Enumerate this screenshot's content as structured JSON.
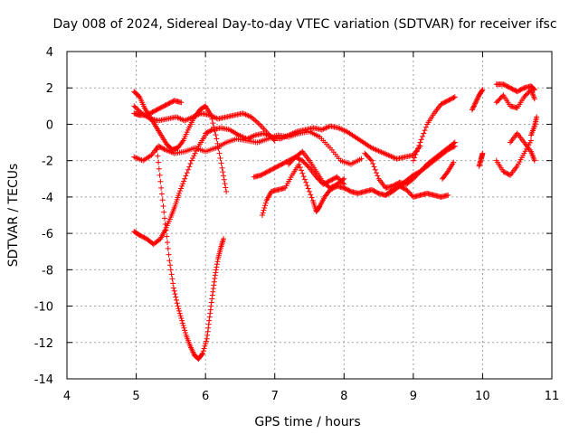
{
  "chart_data": {
    "type": "scatter",
    "title": "Day 008 of 2024, Sidereal Day-to-day VTEC variation (SDTVAR) for receiver ifsc",
    "xlabel": "GPS time / hours",
    "ylabel": "SDTVAR / TECUs",
    "xlim": [
      4,
      11
    ],
    "ylim": [
      -14,
      4
    ],
    "xticks": [
      4,
      5,
      6,
      7,
      8,
      9,
      10,
      11
    ],
    "yticks": [
      -14,
      -12,
      -10,
      -8,
      -6,
      -4,
      -2,
      0,
      2,
      4
    ],
    "grid": true,
    "marker": "plus",
    "color": "#ff0000",
    "series": [
      {
        "x": [
          4.97,
          5.05,
          5.12,
          5.2,
          5.28,
          5.36,
          5.44,
          5.52,
          5.6,
          5.68,
          5.76,
          5.84,
          5.92,
          6.0,
          6.08,
          6.16,
          6.24,
          6.3
        ],
        "y": [
          1.8,
          1.5,
          0.9,
          0.4,
          -0.1,
          -0.6,
          -1.1,
          -1.4,
          -1.3,
          -0.9,
          -0.2,
          0.4,
          0.8,
          1.0,
          0.5,
          -0.8,
          -2.4,
          -3.7
        ]
      },
      {
        "x": [
          4.97,
          5.05,
          5.15,
          5.25,
          5.35,
          5.45,
          5.55,
          5.65
        ],
        "y": [
          0.6,
          0.5,
          0.5,
          0.7,
          0.9,
          1.1,
          1.3,
          1.2
        ]
      },
      {
        "x": [
          4.97,
          5.08,
          5.2,
          5.32,
          5.45,
          5.58,
          5.7,
          5.82,
          5.94,
          6.06,
          6.18,
          6.3,
          6.42,
          6.54,
          6.66,
          6.78,
          6.9,
          7.0
        ],
        "y": [
          1.0,
          0.6,
          0.3,
          0.2,
          0.3,
          0.4,
          0.2,
          0.4,
          0.6,
          0.5,
          0.3,
          0.4,
          0.5,
          0.6,
          0.4,
          0.0,
          -0.5,
          -0.9
        ]
      },
      {
        "x": [
          4.97,
          5.1,
          5.22,
          5.32,
          5.42,
          5.55,
          5.7,
          5.85,
          6.0,
          6.15,
          6.3,
          6.45,
          6.6,
          6.75,
          6.9,
          7.05,
          7.2,
          7.35,
          7.5,
          7.65,
          7.8,
          7.95,
          8.1,
          8.25
        ],
        "y": [
          -1.8,
          -2.0,
          -1.7,
          -1.2,
          -1.4,
          -1.6,
          -1.5,
          -1.3,
          -1.5,
          -1.3,
          -1.0,
          -0.8,
          -0.9,
          -1.0,
          -0.8,
          -0.6,
          -0.7,
          -0.5,
          -0.4,
          -0.7,
          -1.3,
          -2.0,
          -2.2,
          -1.9
        ]
      },
      {
        "x": [
          4.97,
          5.05,
          5.15,
          5.25,
          5.35,
          5.42,
          5.5,
          5.56,
          5.62,
          5.7,
          5.8,
          5.9,
          6.0
        ],
        "y": [
          -5.9,
          -6.1,
          -6.3,
          -6.6,
          -6.3,
          -5.8,
          -5.1,
          -4.5,
          -3.8,
          -3.0,
          -2.0,
          -1.2,
          -0.6
        ]
      },
      {
        "x": [
          5.3,
          5.36,
          5.42,
          5.48,
          5.54,
          5.6,
          5.66,
          5.72,
          5.78,
          5.84,
          5.9,
          5.96,
          6.02,
          6.06,
          6.1,
          6.14,
          6.18,
          6.22,
          6.26
        ],
        "y": [
          -1.4,
          -3.5,
          -5.5,
          -7.5,
          -9.0,
          -10.0,
          -10.8,
          -11.6,
          -12.2,
          -12.7,
          -12.9,
          -12.6,
          -11.8,
          -10.6,
          -9.4,
          -8.3,
          -7.4,
          -6.8,
          -6.3
        ]
      },
      {
        "x": [
          6.0,
          6.1,
          6.22,
          6.35,
          6.48,
          6.6,
          6.72,
          6.84,
          6.96,
          7.08,
          7.2,
          7.32,
          7.44,
          7.56,
          7.68,
          7.8,
          7.92,
          8.04,
          8.16,
          8.28,
          8.4,
          8.52,
          8.64,
          8.76,
          8.88,
          9.0,
          9.1
        ],
        "y": [
          -0.5,
          -0.3,
          -0.2,
          -0.3,
          -0.6,
          -0.8,
          -0.6,
          -0.5,
          -0.7,
          -0.8,
          -0.6,
          -0.4,
          -0.3,
          -0.2,
          -0.3,
          -0.1,
          -0.2,
          -0.4,
          -0.7,
          -1.0,
          -1.3,
          -1.5,
          -1.7,
          -1.9,
          -1.8,
          -1.7,
          -1.2
        ]
      },
      {
        "x": [
          6.7,
          6.8,
          6.9,
          7.0,
          7.1,
          7.2,
          7.3,
          7.4,
          7.5,
          7.6,
          7.7,
          7.8,
          7.9,
          8.0
        ],
        "y": [
          -2.9,
          -2.8,
          -2.6,
          -2.4,
          -2.2,
          -2.0,
          -1.8,
          -2.0,
          -2.4,
          -2.9,
          -3.3,
          -3.1,
          -2.9,
          -3.3
        ]
      },
      {
        "x": [
          6.82,
          6.88,
          6.95,
          7.05,
          7.15,
          7.25,
          7.35,
          7.45,
          7.55,
          7.6,
          7.65,
          7.72,
          7.8,
          7.9,
          8.0,
          8.1,
          8.2,
          8.3,
          8.4,
          8.5,
          8.6,
          8.7,
          8.8,
          8.9,
          9.0,
          9.1,
          9.2,
          9.3,
          9.4,
          9.5
        ],
        "y": [
          -5.0,
          -4.2,
          -3.7,
          -3.6,
          -3.5,
          -2.8,
          -2.2,
          -3.2,
          -4.2,
          -4.8,
          -4.5,
          -4.0,
          -3.6,
          -3.4,
          -3.5,
          -3.7,
          -3.8,
          -3.7,
          -3.6,
          -3.8,
          -3.9,
          -3.6,
          -3.4,
          -3.6,
          -4.0,
          -3.9,
          -3.8,
          -3.9,
          -4.0,
          -3.9
        ]
      },
      {
        "x": [
          7.2,
          7.3,
          7.4,
          7.5,
          7.6,
          7.7,
          7.8,
          7.9,
          8.0
        ],
        "y": [
          -2.2,
          -1.8,
          -1.5,
          -2.0,
          -2.6,
          -3.2,
          -3.5,
          -3.3,
          -3.0
        ]
      },
      {
        "x": [
          8.3,
          8.4,
          8.5,
          8.6,
          8.7,
          8.8,
          8.9,
          9.0,
          9.1,
          9.2,
          9.3,
          9.4,
          9.5,
          9.6
        ],
        "y": [
          -1.6,
          -2.0,
          -3.0,
          -3.5,
          -3.4,
          -3.2,
          -3.3,
          -3.0,
          -2.6,
          -2.2,
          -1.9,
          -1.6,
          -1.3,
          -1.0
        ]
      },
      {
        "x": [
          8.6,
          8.7,
          8.8,
          8.9,
          9.0,
          9.1,
          9.2,
          9.3,
          9.4,
          9.5,
          9.6
        ],
        "y": [
          -3.9,
          -3.7,
          -3.4,
          -3.1,
          -2.8,
          -2.6,
          -2.3,
          -2.0,
          -1.7,
          -1.4,
          -1.2
        ]
      },
      {
        "x": [
          9.0,
          9.1,
          9.2,
          9.3,
          9.4,
          9.5,
          9.6
        ],
        "y": [
          -2.0,
          -1.0,
          0.0,
          0.6,
          1.1,
          1.3,
          1.5
        ]
      },
      {
        "x": [
          9.42,
          9.5,
          9.58
        ],
        "y": [
          -3.0,
          -2.6,
          -2.1
        ]
      },
      {
        "x": [
          9.85,
          9.9,
          9.95,
          10.0
        ],
        "y": [
          0.8,
          1.2,
          1.6,
          1.9
        ]
      },
      {
        "x": [
          9.95,
          9.98,
          10.0
        ],
        "y": [
          -2.3,
          -1.9,
          -1.6
        ]
      },
      {
        "x": [
          10.2,
          10.3,
          10.4,
          10.5,
          10.6,
          10.7,
          10.75
        ],
        "y": [
          2.2,
          2.2,
          2.0,
          1.8,
          2.0,
          2.1,
          1.9
        ]
      },
      {
        "x": [
          10.2,
          10.3,
          10.4,
          10.5,
          10.6,
          10.7,
          10.75
        ],
        "y": [
          1.2,
          1.6,
          1.0,
          0.9,
          1.5,
          1.9,
          1.4
        ]
      },
      {
        "x": [
          10.2,
          10.3,
          10.4,
          10.5,
          10.6,
          10.7
        ],
        "y": [
          -2.0,
          -2.6,
          -2.8,
          -2.3,
          -1.6,
          -0.9
        ]
      },
      {
        "x": [
          10.4,
          10.5,
          10.6,
          10.7,
          10.75
        ],
        "y": [
          -1.0,
          -0.5,
          -1.0,
          -1.5,
          -2.0
        ]
      },
      {
        "x": [
          10.7,
          10.75,
          10.78
        ],
        "y": [
          -0.6,
          -0.1,
          0.4
        ]
      }
    ]
  }
}
